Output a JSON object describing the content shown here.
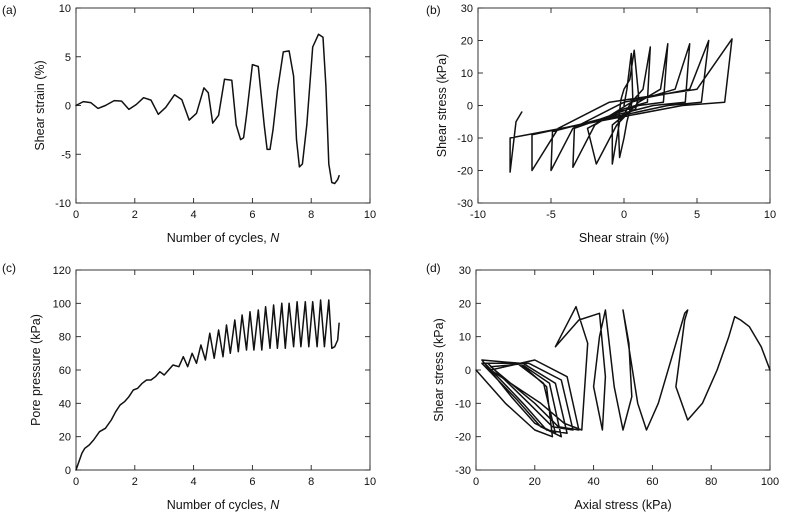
{
  "chart_data": [
    {
      "type": "line",
      "panel_label": "(a)",
      "xlabel": "Number of cycles, ",
      "xlabel_var": "N",
      "ylabel": "Shear strain (%)",
      "xlim": [
        0,
        10
      ],
      "ylim": [
        -10,
        10
      ],
      "xticks": [
        0,
        2,
        4,
        6,
        8,
        10
      ],
      "yticks": [
        -10,
        -5,
        0,
        5,
        10
      ],
      "series": [
        {
          "x": [
            0,
            0.25,
            0.5,
            0.75,
            1.0,
            1.3,
            1.55,
            1.8,
            2.05,
            2.3,
            2.55,
            2.8,
            3.05,
            3.35,
            3.6,
            3.85,
            4.1,
            4.35,
            4.5,
            4.65,
            4.85,
            5.05,
            5.3,
            5.45,
            5.6,
            5.7,
            5.8,
            6.0,
            6.2,
            6.4,
            6.5,
            6.6,
            6.7,
            6.85,
            7.05,
            7.25,
            7.4,
            7.5,
            7.6,
            7.7,
            7.85,
            8.05,
            8.25,
            8.4,
            8.5,
            8.6,
            8.7,
            8.8,
            8.9,
            8.95
          ],
          "values": [
            0,
            0.4,
            0.3,
            -0.3,
            0,
            0.5,
            0.45,
            -0.4,
            0.1,
            0.8,
            0.55,
            -0.9,
            -0.2,
            1.1,
            0.6,
            -1.5,
            -0.8,
            1.8,
            1.3,
            -1.8,
            -1.0,
            2.7,
            2.6,
            -2.0,
            -3.5,
            -3.3,
            -1.0,
            4.2,
            4.0,
            -2.0,
            -4.5,
            -4.5,
            -2.5,
            1.5,
            5.5,
            5.6,
            3.0,
            -3.5,
            -6.3,
            -6.0,
            -2.0,
            6.0,
            7.3,
            7.0,
            2.0,
            -6.0,
            -7.9,
            -8.0,
            -7.6,
            -7.2
          ]
        }
      ]
    },
    {
      "type": "line",
      "panel_label": "(b)",
      "xlabel": "Shear strain (%)",
      "ylabel": "Shear stress (kPa)",
      "xlim": [
        -10,
        10
      ],
      "ylim": [
        -30,
        30
      ],
      "xticks": [
        -10,
        -5,
        0,
        5,
        10
      ],
      "yticks": [
        -30,
        -20,
        -10,
        0,
        10,
        20,
        30
      ],
      "series": [
        {
          "x": [
            0,
            0.2,
            0.5,
            0.6,
            0.2,
            0,
            -0.3,
            -0.4,
            -0.2,
            0,
            0.4,
            0.7,
            1.0,
            0.8,
            0,
            -0.8,
            -0.8,
            -0.3,
            0.5,
            1.3,
            1.8,
            1.6,
            0,
            -2.5,
            -1.9,
            -0.5,
            1.0,
            2.5,
            3.0,
            2.7,
            1.0,
            -3.4,
            -3.5,
            -2.0,
            0.5,
            3.5,
            4.5,
            4.2,
            2.0,
            -4.9,
            -5.0,
            -3.5,
            0,
            4.5,
            5.8,
            5.3,
            3.0,
            -6.3,
            -6.3,
            -4.5,
            -1.0,
            5.0,
            7.4,
            6.9,
            4.0,
            -7.8,
            -7.8,
            -7.4,
            -7.0
          ],
          "values": [
            0,
            5,
            16,
            2,
            -5,
            -10,
            -16,
            -5,
            2,
            5,
            8,
            17,
            3,
            -1,
            -3,
            -6,
            -18,
            -5,
            1,
            5,
            18,
            1,
            -1,
            -7,
            -18,
            -6,
            1,
            5,
            19,
            1,
            0,
            -7,
            -19,
            -6,
            1,
            5,
            19,
            1,
            0,
            -8,
            -20,
            -7,
            1,
            5,
            20,
            1,
            0,
            -9,
            -20,
            -7,
            1,
            5,
            20.5,
            1,
            0,
            -10,
            -20.5,
            -5,
            -2
          ]
        }
      ]
    },
    {
      "type": "line",
      "panel_label": "(c)",
      "xlabel": "Number of cycles, ",
      "xlabel_var": "N",
      "ylabel": "Pore pressure (kPa)",
      "xlim": [
        0,
        10
      ],
      "ylim": [
        0,
        120
      ],
      "xticks": [
        0,
        2,
        4,
        6,
        8,
        10
      ],
      "yticks": [
        0,
        20,
        40,
        60,
        80,
        100,
        120
      ],
      "series": [
        {
          "x": [
            0,
            0.1,
            0.2,
            0.3,
            0.45,
            0.6,
            0.8,
            1.0,
            1.2,
            1.35,
            1.5,
            1.65,
            1.8,
            1.95,
            2.1,
            2.25,
            2.4,
            2.55,
            2.7,
            2.85,
            3.0,
            3.15,
            3.3,
            3.5,
            3.65,
            3.8,
            3.95,
            4.1,
            4.25,
            4.4,
            4.55,
            4.7,
            4.85,
            5.0,
            5.12,
            5.25,
            5.4,
            5.52,
            5.65,
            5.8,
            5.92,
            6.05,
            6.2,
            6.32,
            6.45,
            6.6,
            6.72,
            6.85,
            7.0,
            7.12,
            7.25,
            7.4,
            7.52,
            7.65,
            7.8,
            7.92,
            8.05,
            8.2,
            8.32,
            8.45,
            8.6,
            8.7,
            8.8,
            8.9,
            8.95
          ],
          "values": [
            0,
            5,
            10,
            13,
            15,
            18,
            23,
            25,
            30,
            35,
            39,
            41,
            44,
            48,
            49,
            52,
            54,
            54,
            56,
            59,
            57,
            60,
            63,
            62,
            68,
            62,
            70,
            64,
            75,
            66,
            82,
            67,
            84,
            68,
            87,
            70,
            90,
            71,
            93,
            72,
            95,
            72,
            96,
            72,
            98,
            73,
            99,
            73,
            100,
            73,
            100,
            74,
            101,
            74,
            101,
            74,
            101,
            74,
            102,
            74,
            102,
            73,
            74,
            78,
            88
          ]
        }
      ]
    },
    {
      "type": "line",
      "panel_label": "(d)",
      "xlabel": "Axial stress (kPa)",
      "ylabel": "Shear stress (kPa)",
      "xlim": [
        0,
        100
      ],
      "ylim": [
        -30,
        30
      ],
      "xticks": [
        0,
        20,
        40,
        60,
        80,
        100
      ],
      "yticks": [
        -30,
        -20,
        -10,
        0,
        10,
        20,
        30
      ],
      "series": [
        {
          "x": [
            0,
            10,
            20,
            26,
            24,
            15,
            2,
            12,
            20,
            27,
            23,
            14,
            2,
            14,
            22,
            29,
            25,
            15,
            3,
            16,
            24,
            31,
            27,
            16,
            4,
            18,
            26,
            33,
            29,
            18,
            5,
            20,
            28,
            35,
            31,
            20,
            5,
            22,
            30,
            36,
            38,
            34,
            27,
            35,
            42,
            44,
            43,
            40,
            42,
            44,
            47,
            50,
            53,
            52,
            50,
            55,
            58,
            62,
            67,
            71,
            72,
            71,
            68,
            72,
            77,
            82,
            86,
            88,
            90,
            93,
            97,
            100
          ],
          "values": [
            0,
            -10,
            -18,
            -20,
            -5,
            2,
            3,
            -8,
            -16,
            -19,
            -4,
            2,
            2,
            -9,
            -17,
            -20,
            -4,
            2,
            2,
            -10,
            -18,
            -19,
            -4,
            2,
            2,
            -10,
            -17,
            -18,
            -3,
            2,
            1,
            -10,
            -17,
            -18,
            -2,
            3,
            0,
            -10,
            -16,
            -18,
            8,
            19,
            7,
            15,
            17,
            -2,
            -18,
            -5,
            10,
            18,
            -5,
            -18,
            -8,
            8,
            18,
            -10,
            -18,
            -10,
            5,
            17,
            18,
            15,
            -5,
            -15,
            -10,
            0,
            10,
            16,
            15,
            13,
            7,
            0
          ]
        }
      ]
    }
  ]
}
